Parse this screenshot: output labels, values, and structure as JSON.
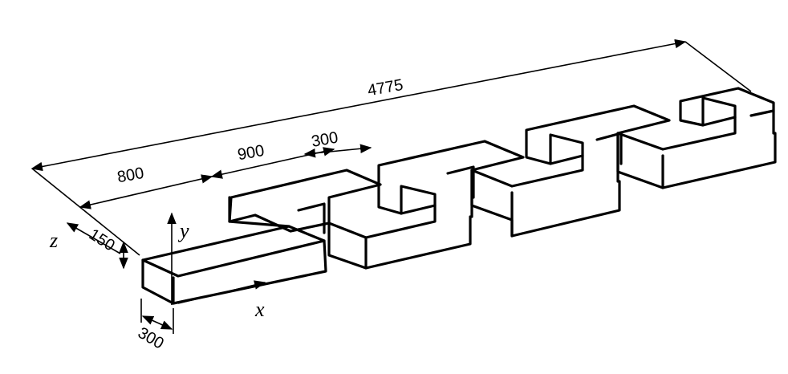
{
  "dimensions": {
    "total_length": "4775",
    "first_segment": "800",
    "second_segment": "900",
    "gap": "300",
    "height": "150",
    "width": "300"
  },
  "axes": {
    "x": "x",
    "y": "y",
    "z": "z"
  }
}
